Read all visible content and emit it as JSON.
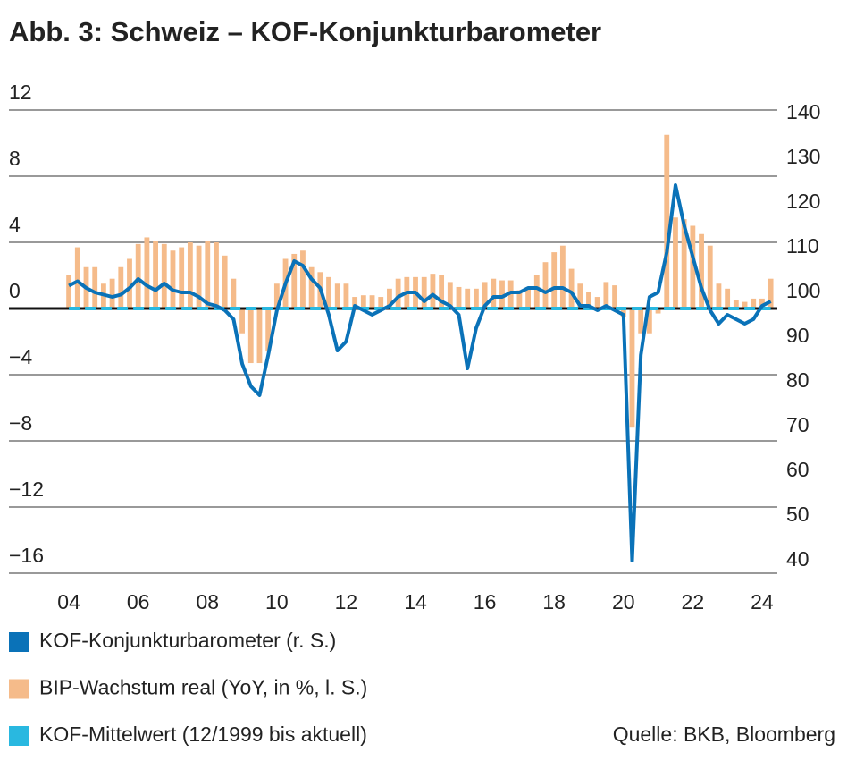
{
  "chart_data": {
    "type": "bar_line",
    "title": "Abb. 3: Schweiz – KOF-Konjunkturbarometer",
    "source": "Quelle: BKB, Bloomberg",
    "x": [
      2004,
      2004.25,
      2004.5,
      2004.75,
      2005,
      2005.25,
      2005.5,
      2005.75,
      2006,
      2006.25,
      2006.5,
      2006.75,
      2007,
      2007.25,
      2007.5,
      2007.75,
      2008,
      2008.25,
      2008.5,
      2008.75,
      2009,
      2009.25,
      2009.5,
      2009.75,
      2010,
      2010.25,
      2010.5,
      2010.75,
      2011,
      2011.25,
      2011.5,
      2011.75,
      2012,
      2012.25,
      2012.5,
      2012.75,
      2013,
      2013.25,
      2013.5,
      2013.75,
      2014,
      2014.25,
      2014.5,
      2014.75,
      2015,
      2015.25,
      2015.5,
      2015.75,
      2016,
      2016.25,
      2016.5,
      2016.75,
      2017,
      2017.25,
      2017.5,
      2017.75,
      2018,
      2018.25,
      2018.5,
      2018.75,
      2019,
      2019.25,
      2019.5,
      2019.75,
      2020,
      2020.25,
      2020.5,
      2020.75,
      2021,
      2021.25,
      2021.5,
      2021.75,
      2022,
      2022.25,
      2022.5,
      2022.75,
      2023,
      2023.25,
      2023.5,
      2023.75,
      2024,
      2024.25
    ],
    "xlim": [
      2002.27,
      2024.44
    ],
    "xticks": [
      {
        "value": 2004,
        "label": "04"
      },
      {
        "value": 2006,
        "label": "06"
      },
      {
        "value": 2008,
        "label": "08"
      },
      {
        "value": 2010,
        "label": "10"
      },
      {
        "value": 2012,
        "label": "12"
      },
      {
        "value": 2014,
        "label": "14"
      },
      {
        "value": 2016,
        "label": "16"
      },
      {
        "value": 2018,
        "label": "18"
      },
      {
        "value": 2020,
        "label": "20"
      },
      {
        "value": 2022,
        "label": "22"
      },
      {
        "value": 2024,
        "label": "24"
      }
    ],
    "ylim": [
      -16,
      12
    ],
    "yticks": [
      12,
      8,
      4,
      0,
      {
        "value": -4,
        "label": "−4"
      },
      {
        "value": -8,
        "label": "−8"
      },
      {
        "value": -12,
        "label": "−12"
      },
      {
        "value": -16,
        "label": "−16"
      }
    ],
    "y2lim": [
      37.2,
      140.8
    ],
    "y2ticks": [
      140,
      130,
      120,
      110,
      100,
      90,
      80,
      70,
      60,
      50,
      40
    ],
    "grid": true,
    "series": [
      {
        "name": "BIP-Wachstum real (YoY, in %, l. S.)",
        "kind": "bar",
        "color": "#f5bb8a",
        "values": [
          2.0,
          3.7,
          2.5,
          2.5,
          1.5,
          1.8,
          2.5,
          3.0,
          3.9,
          4.3,
          4.1,
          3.9,
          3.5,
          3.7,
          4.0,
          3.8,
          4.1,
          4.0,
          3.2,
          1.8,
          -1.5,
          -3.3,
          -3.3,
          -2.6,
          1.5,
          3.0,
          3.3,
          3.5,
          2.5,
          2.2,
          1.9,
          1.5,
          1.5,
          0.7,
          0.8,
          0.8,
          0.7,
          1.2,
          1.8,
          1.9,
          1.9,
          1.9,
          2.1,
          2.0,
          1.6,
          1.3,
          1.2,
          1.2,
          1.6,
          1.8,
          1.7,
          1.7,
          1.1,
          1.3,
          2.0,
          2.8,
          3.4,
          3.8,
          2.4,
          1.5,
          1.0,
          0.7,
          1.6,
          1.4,
          -0.5,
          -7.2,
          -1.5,
          -1.5,
          -0.3,
          10.5,
          5.5,
          5.4,
          5.0,
          4.5,
          3.8,
          1.5,
          1.2,
          0.5,
          0.4,
          0.6,
          0.6,
          1.8
        ]
      },
      {
        "name": "KOF-Konjunkturbarometer (r. S.)",
        "kind": "line",
        "color": "#0a72b8",
        "axis": "y2",
        "values": [
          101.5,
          102.5,
          101,
          100,
          99.5,
          99,
          99.5,
          101,
          103,
          101.5,
          100.5,
          102,
          100.5,
          100,
          100,
          99,
          97.5,
          97,
          96,
          94,
          84,
          79,
          77,
          86,
          96,
          102,
          107,
          106,
          103,
          101,
          95,
          87,
          89,
          97,
          96,
          95,
          96,
          97,
          99,
          100,
          100,
          98,
          99.5,
          98,
          97,
          95,
          83,
          92,
          97,
          99,
          99,
          100,
          100,
          101,
          101,
          100,
          101,
          101,
          100,
          97,
          97,
          96,
          97,
          96,
          95,
          40,
          86,
          99,
          100,
          109,
          124,
          115,
          108,
          101,
          96,
          93,
          95,
          94,
          93,
          94,
          97,
          98
        ]
      }
    ],
    "mean_line": {
      "name": "KOF-Mittelwert (12/1999 bis aktuell)",
      "color": "#29b8e0",
      "axis": "y2",
      "value": 96.4
    }
  }
}
